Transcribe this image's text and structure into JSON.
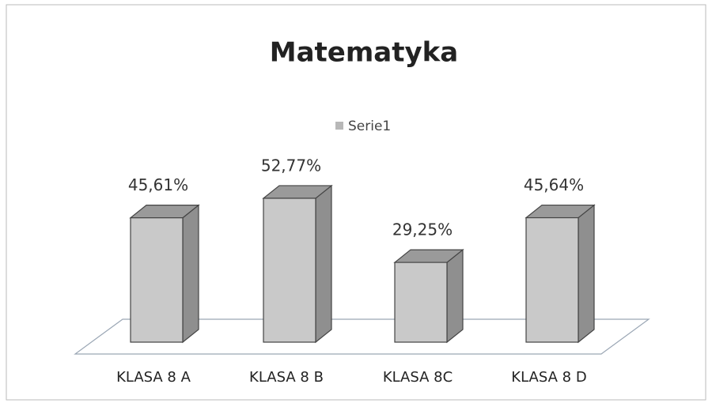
{
  "chart_data": {
    "type": "bar3d",
    "title": "Matematyka",
    "categories": [
      "KLASA 8 A",
      "KLASA 8 B",
      "KLASA 8C",
      "KLASA 8 D"
    ],
    "series": [
      {
        "name": "Serie1",
        "color": "#c9c9c9",
        "values": [
          45.61,
          52.77,
          29.25,
          45.64
        ],
        "value_labels": [
          "45,61%",
          "52,77%",
          "29,25%",
          "45,64%"
        ]
      }
    ]
  }
}
